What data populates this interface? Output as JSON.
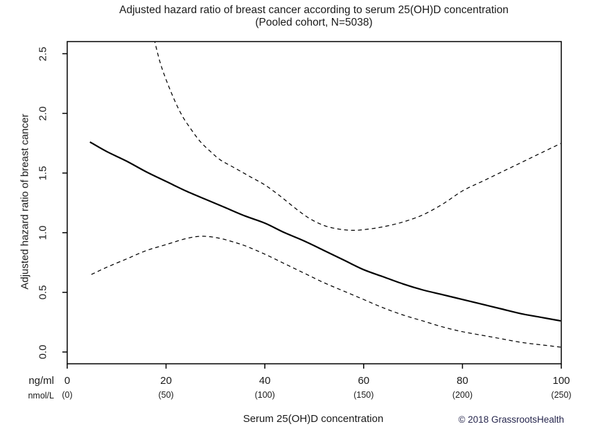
{
  "figure": {
    "title_line1": "Adjusted hazard ratio of breast cancer according to serum 25(OH)D concentration",
    "title_line2": "(Pooled cohort, N=5038)",
    "ylabel": "Adjusted hazard ratio of breast cancer",
    "xlabel": "Serum 25(OH)D concentration",
    "x_unit_primary": "ng/ml",
    "x_unit_secondary": "nmol/L",
    "copyright": "© 2018 GrassrootsHealth"
  },
  "colors": {
    "line": "#000000",
    "text": "#1a1a1a",
    "copyright_text": "#26264d",
    "background": "#ffffff"
  },
  "chart_data": {
    "type": "line",
    "title": "Adjusted hazard ratio of breast cancer according to serum 25(OH)D concentration",
    "subtitle": "(Pooled cohort, N=5038)",
    "xlabel": "Serum 25(OH)D concentration",
    "ylabel": "Adjusted hazard ratio of breast cancer",
    "xlim": [
      0,
      100
    ],
    "ylim": [
      -0.1,
      2.6
    ],
    "grid": false,
    "legend": "none",
    "x_ticks_ngml": [
      0,
      20,
      40,
      60,
      80,
      100
    ],
    "x_ticks_nmoll_labels": [
      "(0)",
      "(50)",
      "(100)",
      "(150)",
      "(200)",
      "(250)"
    ],
    "y_tick_labels": [
      "0.0",
      "0.5",
      "1.0",
      "1.5",
      "2.0",
      "2.5"
    ],
    "series": [
      {
        "id": "hazard-ratio-line",
        "style": "solid",
        "x": [
          4.6,
          8,
          12,
          16,
          20,
          24,
          28,
          32,
          36,
          40,
          44,
          48,
          52,
          56,
          60,
          64,
          68,
          72,
          76,
          80,
          84,
          88,
          92,
          96,
          100
        ],
        "y": [
          1.76,
          1.68,
          1.6,
          1.51,
          1.43,
          1.35,
          1.28,
          1.21,
          1.14,
          1.08,
          1.0,
          0.93,
          0.85,
          0.77,
          0.69,
          0.63,
          0.57,
          0.52,
          0.48,
          0.44,
          0.4,
          0.36,
          0.32,
          0.29,
          0.26
        ]
      },
      {
        "id": "upper-ci-line",
        "style": "dashed",
        "x": [
          17.6,
          19,
          21,
          23,
          25,
          27,
          29,
          31,
          34,
          37,
          40,
          43,
          46,
          49,
          52,
          55,
          58,
          61,
          64,
          68,
          72,
          76,
          80,
          84,
          88,
          92,
          96,
          100
        ],
        "y": [
          2.62,
          2.4,
          2.18,
          2.0,
          1.87,
          1.76,
          1.68,
          1.61,
          1.54,
          1.47,
          1.4,
          1.31,
          1.21,
          1.12,
          1.06,
          1.03,
          1.02,
          1.03,
          1.05,
          1.09,
          1.15,
          1.24,
          1.35,
          1.43,
          1.51,
          1.59,
          1.67,
          1.75
        ]
      },
      {
        "id": "lower-ci-line",
        "style": "dashed",
        "x": [
          4.9,
          8,
          12,
          16,
          20,
          24,
          27,
          30,
          33,
          36,
          40,
          44,
          48,
          52,
          56,
          60,
          64,
          68,
          72,
          76,
          80,
          84,
          88,
          92,
          96,
          100
        ],
        "y": [
          0.65,
          0.71,
          0.78,
          0.85,
          0.9,
          0.95,
          0.97,
          0.96,
          0.93,
          0.89,
          0.82,
          0.74,
          0.66,
          0.58,
          0.51,
          0.44,
          0.37,
          0.31,
          0.26,
          0.21,
          0.17,
          0.14,
          0.11,
          0.08,
          0.06,
          0.04
        ]
      }
    ]
  }
}
